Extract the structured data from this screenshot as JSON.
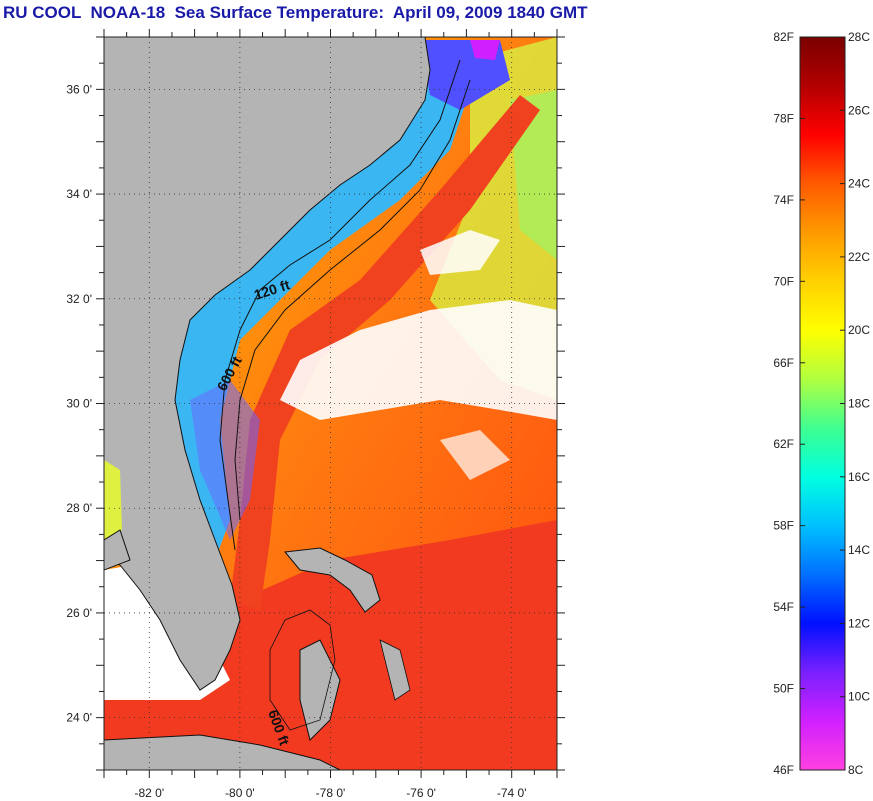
{
  "title": "RU COOL  NOAA-18  Sea Surface Temperature:  April 09, 2009 1840 GMT",
  "map": {
    "lon_range": [
      -83,
      -73
    ],
    "lat_range": [
      23,
      37
    ],
    "lat_ticks": [
      "36 0'",
      "34 0'",
      "32 0'",
      "30 0'",
      "28 0'",
      "26 0'",
      "24 0'"
    ],
    "lat_values": [
      36,
      34,
      32,
      30,
      28,
      26,
      24
    ],
    "lon_ticks": [
      "-82 0'",
      "-80 0'",
      "-78 0'",
      "-76 0'",
      "-74 0'"
    ],
    "lon_values": [
      -82,
      -80,
      -78,
      -76,
      -74
    ],
    "contour_labels": [
      "120 ft",
      "600 ft",
      "600 ft"
    ],
    "colors": {
      "land": "#b4b4b4",
      "cloud": "#ffffff",
      "gulf_stream": "#f2421e",
      "warm": "#ff6a1a",
      "cool": "#2fb8ff"
    }
  },
  "colorbar": {
    "fahrenheit_labels": [
      "82F",
      "78F",
      "74F",
      "70F",
      "66F",
      "62F",
      "58F",
      "54F",
      "50F",
      "46F"
    ],
    "fahrenheit_values": [
      82,
      78,
      74,
      70,
      66,
      62,
      58,
      54,
      50,
      46
    ],
    "celsius_labels": [
      "28C",
      "26C",
      "24C",
      "22C",
      "20C",
      "18C",
      "16C",
      "14C",
      "12C",
      "10C",
      "8C"
    ],
    "celsius_values": [
      28,
      26,
      24,
      22,
      20,
      18,
      16,
      14,
      12,
      10,
      8
    ],
    "gradient_colors": [
      "#7a0000",
      "#b30000",
      "#ff0000",
      "#ff5a00",
      "#ff9a00",
      "#ffd000",
      "#ffff00",
      "#b0ff40",
      "#40ff90",
      "#00ffe0",
      "#00c0ff",
      "#0070ff",
      "#0010ff",
      "#7a20ff",
      "#d020ff",
      "#ff40e0"
    ]
  }
}
